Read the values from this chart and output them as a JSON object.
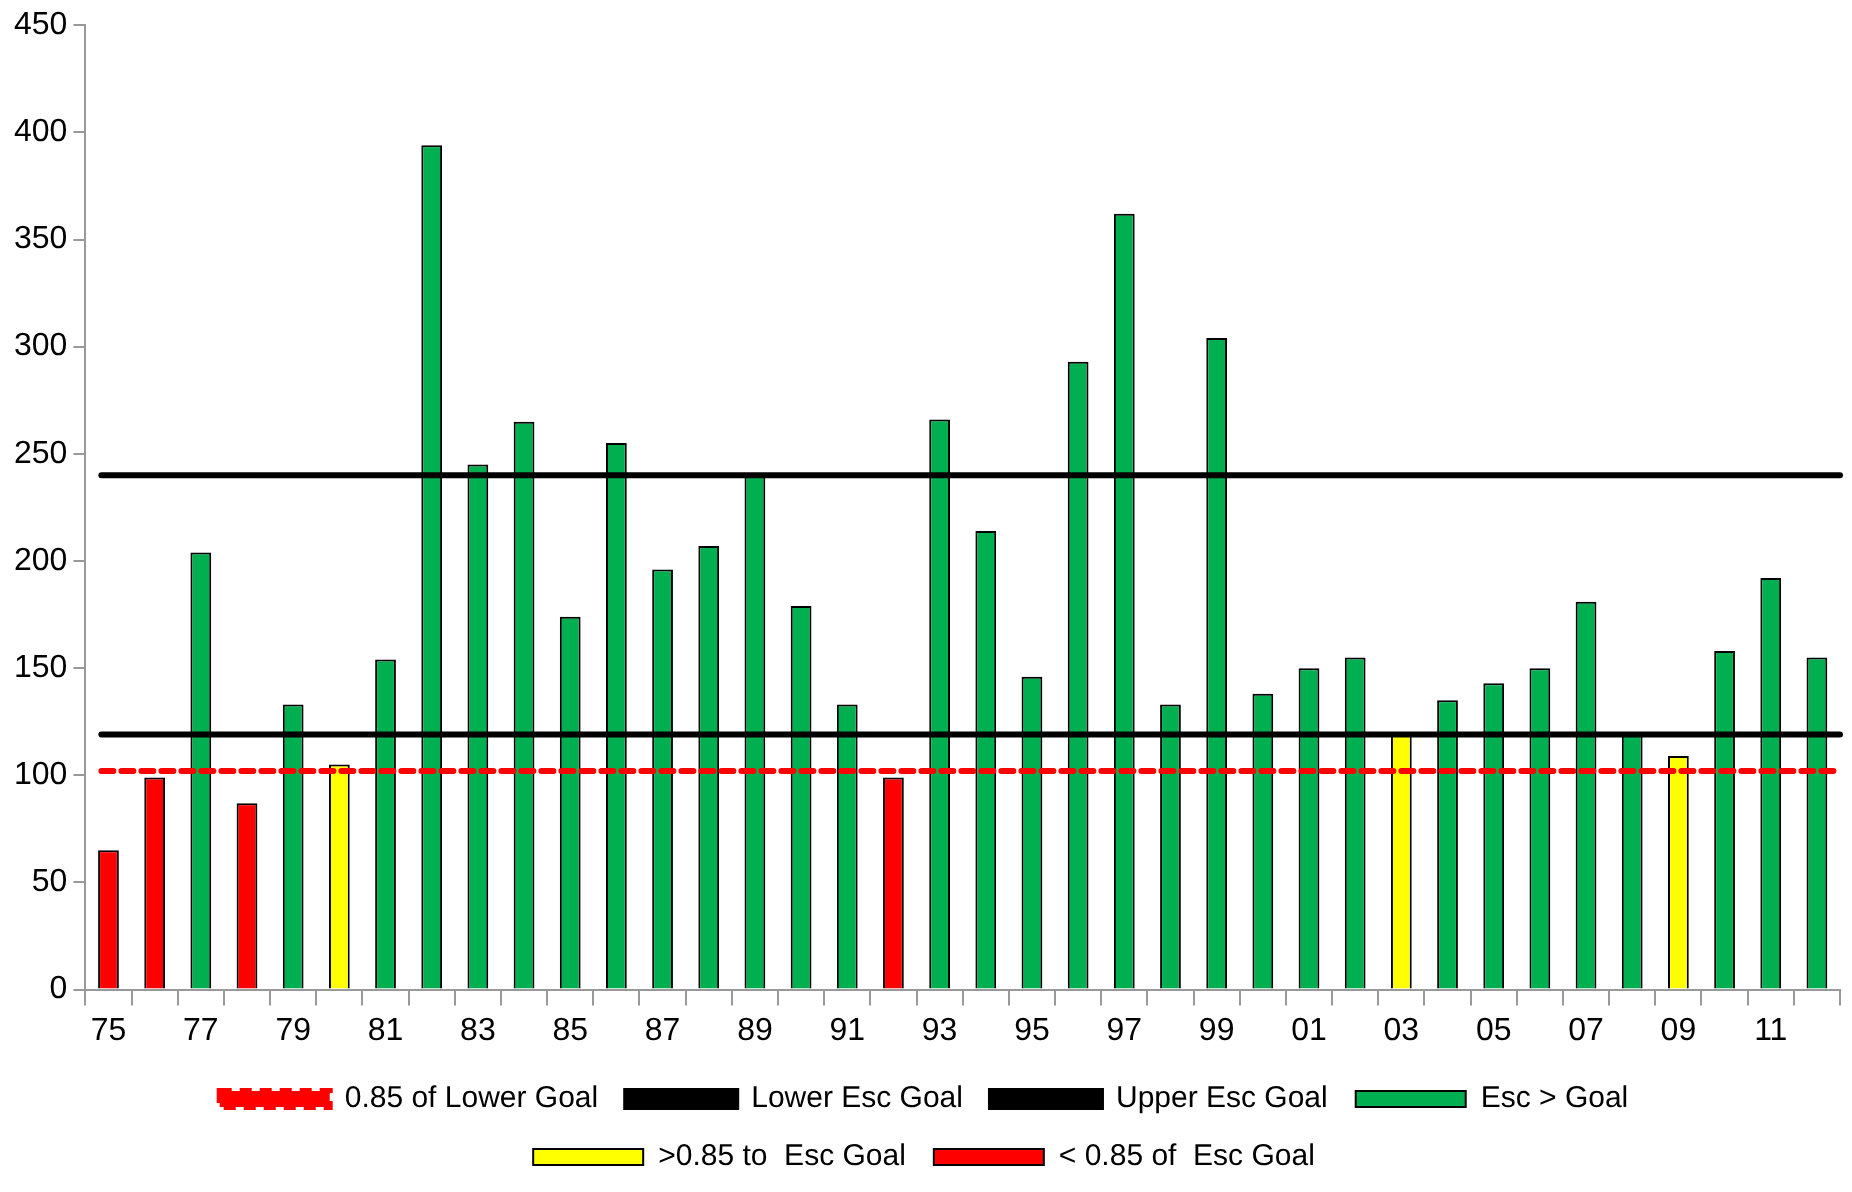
{
  "chart_data": {
    "type": "bar",
    "categories": [
      "75",
      null,
      "77",
      null,
      "79",
      null,
      "81",
      null,
      "83",
      null,
      "85",
      null,
      "87",
      null,
      "89",
      null,
      "91",
      null,
      "93",
      null,
      "95",
      null,
      "97",
      null,
      "99",
      null,
      "01",
      null,
      "03",
      null,
      "05",
      null,
      "07",
      null,
      "09",
      null,
      "11",
      null
    ],
    "series": [
      {
        "name": "Esc > Goal",
        "color": "#00b050",
        "values": [
          null,
          null,
          204,
          null,
          133,
          null,
          154,
          394,
          245,
          265,
          174,
          255,
          196,
          207,
          240,
          179,
          133,
          null,
          266,
          214,
          146,
          293,
          362,
          133,
          304,
          138,
          150,
          155,
          null,
          135,
          143,
          150,
          181,
          120,
          null,
          158,
          192,
          155
        ]
      },
      {
        "name": ">0.85 to  Esc Goal",
        "color": "#ffff00",
        "values": [
          null,
          null,
          null,
          null,
          null,
          105,
          null,
          null,
          null,
          null,
          null,
          null,
          null,
          null,
          null,
          null,
          null,
          null,
          null,
          null,
          null,
          null,
          null,
          null,
          null,
          null,
          null,
          null,
          119,
          null,
          null,
          null,
          null,
          null,
          109,
          null,
          null,
          null
        ]
      },
      {
        "name": "< 0.85 of  Esc Goal",
        "color": "#ff0000",
        "values": [
          65,
          99,
          null,
          87,
          null,
          null,
          null,
          null,
          null,
          null,
          null,
          null,
          null,
          null,
          null,
          null,
          null,
          99,
          null,
          null,
          null,
          null,
          null,
          null,
          null,
          null,
          null,
          null,
          null,
          null,
          null,
          null,
          null,
          null,
          null,
          null,
          null,
          null
        ]
      }
    ],
    "ref_lines": [
      {
        "axis": "y",
        "value": 102,
        "label": "0.85 of Lower Goal",
        "color": "#ff0000",
        "line_style": "dashed"
      },
      {
        "axis": "y",
        "value": 119,
        "label": "Lower Esc Goal",
        "color": "#000000",
        "line_style": "solid"
      },
      {
        "axis": "y",
        "value": 240,
        "label": "Upper Esc Goal",
        "color": "#000000",
        "line_style": "solid"
      }
    ],
    "ylim": [
      0,
      450
    ],
    "yticks": [
      0,
      50,
      100,
      150,
      200,
      250,
      300,
      350,
      400,
      450
    ],
    "grid": false,
    "legend": "bottom"
  }
}
